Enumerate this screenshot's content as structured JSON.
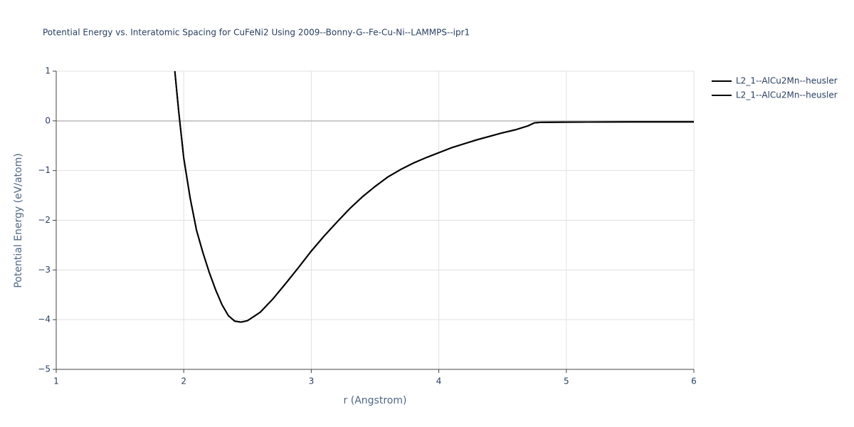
{
  "chart_data": {
    "type": "line",
    "title": "Potential Energy vs. Interatomic Spacing for CuFeNi2 Using 2009--Bonny-G--Fe-Cu-Ni--LAMMPS--ipr1",
    "x_label": "r (Angstrom)",
    "y_label": "Potential Energy (eV/atom)",
    "x": [
      1.93,
      1.96,
      2.0,
      2.05,
      2.1,
      2.15,
      2.2,
      2.25,
      2.3,
      2.35,
      2.4,
      2.45,
      2.5,
      2.6,
      2.7,
      2.8,
      2.9,
      3.0,
      3.1,
      3.2,
      3.3,
      3.4,
      3.5,
      3.6,
      3.7,
      3.8,
      3.9,
      4.0,
      4.1,
      4.2,
      4.3,
      4.4,
      4.5,
      4.6,
      4.7,
      4.75,
      4.8,
      5.0,
      5.5,
      6.0
    ],
    "series": [
      {
        "name": "L2_1--AlCu2Mn--heusler",
        "color": "#000000",
        "values": [
          1.0,
          0.2,
          -0.75,
          -1.55,
          -2.2,
          -2.65,
          -3.05,
          -3.4,
          -3.7,
          -3.92,
          -4.03,
          -4.05,
          -4.02,
          -3.85,
          -3.58,
          -3.27,
          -2.95,
          -2.62,
          -2.32,
          -2.04,
          -1.77,
          -1.53,
          -1.32,
          -1.13,
          -0.98,
          -0.85,
          -0.74,
          -0.64,
          -0.54,
          -0.46,
          -0.38,
          -0.31,
          -0.24,
          -0.18,
          -0.1,
          -0.04,
          -0.03,
          -0.025,
          -0.02,
          -0.02
        ]
      },
      {
        "name": "L2_1--AlCu2Mn--heusler",
        "color": "#000000",
        "values": [
          1.0,
          0.2,
          -0.75,
          -1.55,
          -2.2,
          -2.65,
          -3.05,
          -3.4,
          -3.7,
          -3.92,
          -4.03,
          -4.05,
          -4.02,
          -3.85,
          -3.58,
          -3.27,
          -2.95,
          -2.62,
          -2.32,
          -2.04,
          -1.77,
          -1.53,
          -1.32,
          -1.13,
          -0.98,
          -0.85,
          -0.74,
          -0.64,
          -0.54,
          -0.46,
          -0.38,
          -0.31,
          -0.24,
          -0.18,
          -0.1,
          -0.04,
          -0.03,
          -0.025,
          -0.02,
          -0.02
        ]
      }
    ],
    "xlim": [
      1,
      6
    ],
    "xticks": [
      1,
      2,
      3,
      4,
      5,
      6
    ],
    "ylim": [
      -5,
      1
    ],
    "yticks": [
      {
        "value": -5,
        "label": "−5"
      },
      {
        "value": -4,
        "label": "−4"
      },
      {
        "value": -3,
        "label": "−3"
      },
      {
        "value": -2,
        "label": "−2"
      },
      {
        "value": -1,
        "label": "−1"
      },
      0,
      1
    ],
    "grid": true,
    "legend": "right"
  }
}
